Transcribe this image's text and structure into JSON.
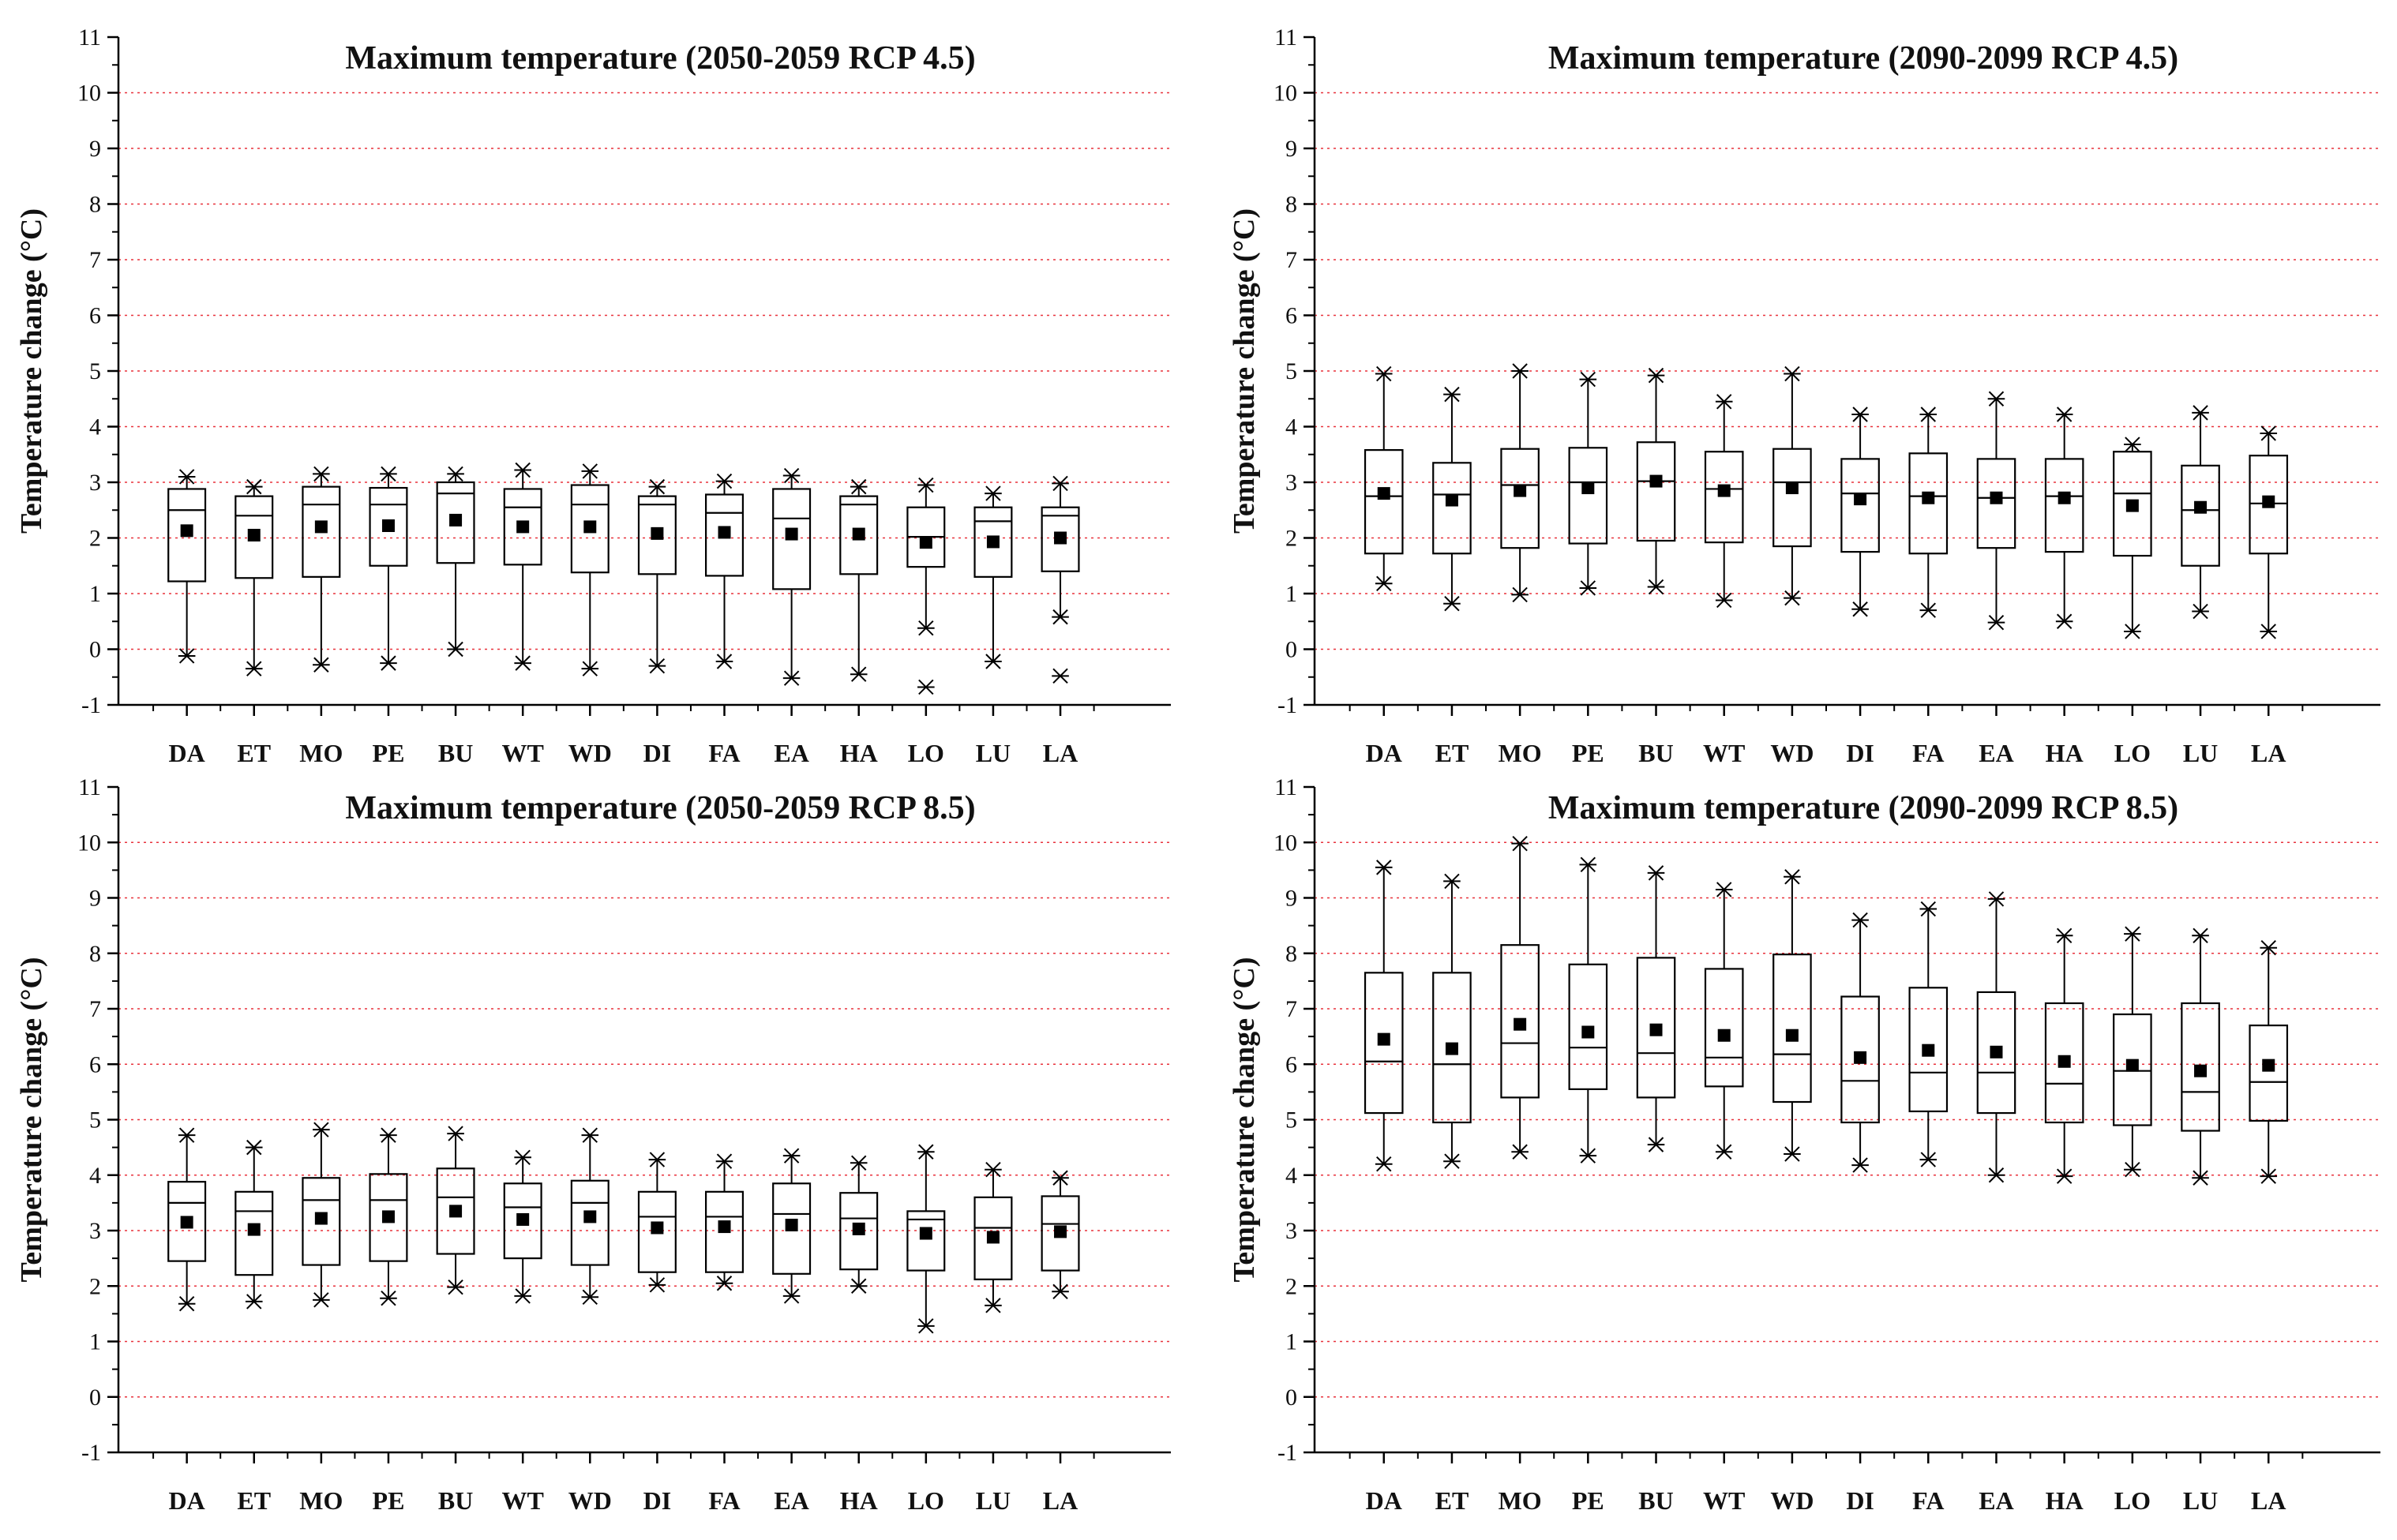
{
  "chart_data": [
    {
      "type": "box",
      "title": "Maximum temperature (2050-2059 RCP 4.5)",
      "ylabel": "Temperature change (°C)",
      "xlabel": "",
      "ylim": [
        -1,
        11
      ],
      "yticks": [
        "-1",
        "0",
        "1",
        "2",
        "3",
        "4",
        "5",
        "6",
        "7",
        "8",
        "9",
        "10",
        "11"
      ],
      "grid": "dotted-red",
      "legend": "none",
      "categories": [
        "DA",
        "ET",
        "MO",
        "PE",
        "BU",
        "WT",
        "WD",
        "DI",
        "FA",
        "EA",
        "HA",
        "LO",
        "LU",
        "LA"
      ],
      "boxes": [
        {
          "min": -0.12,
          "q1": 1.22,
          "median": 2.5,
          "q3": 2.88,
          "max": 3.1,
          "mean": 2.13
        },
        {
          "min": -0.35,
          "q1": 1.28,
          "median": 2.4,
          "q3": 2.75,
          "max": 2.92,
          "mean": 2.05
        },
        {
          "min": -0.28,
          "q1": 1.3,
          "median": 2.6,
          "q3": 2.92,
          "max": 3.15,
          "mean": 2.2
        },
        {
          "min": -0.25,
          "q1": 1.5,
          "median": 2.6,
          "q3": 2.9,
          "max": 3.15,
          "mean": 2.22
        },
        {
          "min": 0.0,
          "q1": 1.55,
          "median": 2.8,
          "q3": 3.0,
          "max": 3.15,
          "mean": 2.32
        },
        {
          "min": -0.25,
          "q1": 1.52,
          "median": 2.55,
          "q3": 2.88,
          "max": 3.22,
          "mean": 2.2
        },
        {
          "min": -0.35,
          "q1": 1.38,
          "median": 2.6,
          "q3": 2.95,
          "max": 3.2,
          "mean": 2.2
        },
        {
          "min": -0.3,
          "q1": 1.35,
          "median": 2.6,
          "q3": 2.75,
          "max": 2.92,
          "mean": 2.08
        },
        {
          "min": -0.22,
          "q1": 1.32,
          "median": 2.45,
          "q3": 2.78,
          "max": 3.02,
          "mean": 2.1
        },
        {
          "min": -0.52,
          "q1": 1.08,
          "median": 2.35,
          "q3": 2.88,
          "max": 3.12,
          "mean": 2.07
        },
        {
          "min": -0.45,
          "q1": 1.35,
          "median": 2.6,
          "q3": 2.75,
          "max": 2.92,
          "mean": 2.07
        },
        {
          "min": 0.38,
          "q1": 1.48,
          "median": 2.02,
          "q3": 2.55,
          "max": 2.95,
          "mean": 1.92,
          "outliers": [
            -0.68
          ]
        },
        {
          "min": -0.22,
          "q1": 1.3,
          "median": 2.3,
          "q3": 2.55,
          "max": 2.8,
          "mean": 1.93
        },
        {
          "min": 0.58,
          "q1": 1.4,
          "median": 2.4,
          "q3": 2.55,
          "max": 2.98,
          "mean": 2.0,
          "outliers": [
            -0.48
          ]
        }
      ]
    },
    {
      "type": "box",
      "title": "Maximum temperature (2090-2099 RCP 4.5)",
      "ylabel": "Temperature change (°C)",
      "xlabel": "",
      "ylim": [
        -1,
        11
      ],
      "yticks": [
        "-1",
        "0",
        "1",
        "2",
        "3",
        "4",
        "5",
        "6",
        "7",
        "8",
        "9",
        "10",
        "11"
      ],
      "grid": "dotted-red",
      "legend": "none",
      "categories": [
        "DA",
        "ET",
        "MO",
        "PE",
        "BU",
        "WT",
        "WD",
        "DI",
        "FA",
        "EA",
        "HA",
        "LO",
        "LU",
        "LA"
      ],
      "boxes": [
        {
          "min": 1.18,
          "q1": 1.72,
          "median": 2.75,
          "q3": 3.58,
          "max": 4.95,
          "mean": 2.8
        },
        {
          "min": 0.82,
          "q1": 1.72,
          "median": 2.78,
          "q3": 3.35,
          "max": 4.58,
          "mean": 2.68
        },
        {
          "min": 0.98,
          "q1": 1.82,
          "median": 2.95,
          "q3": 3.6,
          "max": 5.0,
          "mean": 2.85
        },
        {
          "min": 1.1,
          "q1": 1.9,
          "median": 3.0,
          "q3": 3.62,
          "max": 4.85,
          "mean": 2.9
        },
        {
          "min": 1.12,
          "q1": 1.95,
          "median": 3.02,
          "q3": 3.72,
          "max": 4.92,
          "mean": 3.02
        },
        {
          "min": 0.88,
          "q1": 1.92,
          "median": 2.88,
          "q3": 3.55,
          "max": 4.45,
          "mean": 2.85
        },
        {
          "min": 0.92,
          "q1": 1.85,
          "median": 3.0,
          "q3": 3.6,
          "max": 4.95,
          "mean": 2.9
        },
        {
          "min": 0.72,
          "q1": 1.75,
          "median": 2.8,
          "q3": 3.42,
          "max": 4.22,
          "mean": 2.7
        },
        {
          "min": 0.7,
          "q1": 1.72,
          "median": 2.75,
          "q3": 3.52,
          "max": 4.22,
          "mean": 2.72
        },
        {
          "min": 0.48,
          "q1": 1.82,
          "median": 2.72,
          "q3": 3.42,
          "max": 4.5,
          "mean": 2.72
        },
        {
          "min": 0.5,
          "q1": 1.75,
          "median": 2.75,
          "q3": 3.42,
          "max": 4.22,
          "mean": 2.72
        },
        {
          "min": 0.32,
          "q1": 1.68,
          "median": 2.8,
          "q3": 3.55,
          "max": 3.68,
          "mean": 2.58
        },
        {
          "min": 0.68,
          "q1": 1.5,
          "median": 2.5,
          "q3": 3.3,
          "max": 4.25,
          "mean": 2.55
        },
        {
          "min": 0.32,
          "q1": 1.72,
          "median": 2.62,
          "q3": 3.48,
          "max": 3.88,
          "mean": 2.65
        }
      ]
    },
    {
      "type": "box",
      "title": "Maximum temperature (2050-2059 RCP 8.5)",
      "ylabel": "Temperature change (°C)",
      "xlabel": "",
      "ylim": [
        -1,
        11
      ],
      "yticks": [
        "-1",
        "0",
        "1",
        "2",
        "3",
        "4",
        "5",
        "6",
        "7",
        "8",
        "9",
        "10",
        "11"
      ],
      "grid": "dotted-red",
      "legend": "none",
      "categories": [
        "DA",
        "ET",
        "MO",
        "PE",
        "BU",
        "WT",
        "WD",
        "DI",
        "FA",
        "EA",
        "HA",
        "LO",
        "LU",
        "LA"
      ],
      "boxes": [
        {
          "min": 1.68,
          "q1": 2.45,
          "median": 3.5,
          "q3": 3.88,
          "max": 4.72,
          "mean": 3.15
        },
        {
          "min": 1.72,
          "q1": 2.2,
          "median": 3.35,
          "q3": 3.7,
          "max": 4.5,
          "mean": 3.02
        },
        {
          "min": 1.75,
          "q1": 2.38,
          "median": 3.55,
          "q3": 3.95,
          "max": 4.82,
          "mean": 3.22
        },
        {
          "min": 1.78,
          "q1": 2.45,
          "median": 3.55,
          "q3": 4.02,
          "max": 4.72,
          "mean": 3.25
        },
        {
          "min": 1.98,
          "q1": 2.58,
          "median": 3.6,
          "q3": 4.12,
          "max": 4.75,
          "mean": 3.35
        },
        {
          "min": 1.82,
          "q1": 2.5,
          "median": 3.42,
          "q3": 3.85,
          "max": 4.32,
          "mean": 3.2
        },
        {
          "min": 1.8,
          "q1": 2.38,
          "median": 3.5,
          "q3": 3.9,
          "max": 4.72,
          "mean": 3.25
        },
        {
          "min": 2.02,
          "q1": 2.25,
          "median": 3.25,
          "q3": 3.7,
          "max": 4.28,
          "mean": 3.05
        },
        {
          "min": 2.05,
          "q1": 2.25,
          "median": 3.25,
          "q3": 3.7,
          "max": 4.25,
          "mean": 3.07
        },
        {
          "min": 1.82,
          "q1": 2.22,
          "median": 3.3,
          "q3": 3.85,
          "max": 4.35,
          "mean": 3.1
        },
        {
          "min": 2.0,
          "q1": 2.3,
          "median": 3.22,
          "q3": 3.68,
          "max": 4.22,
          "mean": 3.03
        },
        {
          "min": 1.28,
          "q1": 2.28,
          "median": 3.2,
          "q3": 3.35,
          "max": 4.42,
          "mean": 2.95
        },
        {
          "min": 1.65,
          "q1": 2.12,
          "median": 3.05,
          "q3": 3.6,
          "max": 4.1,
          "mean": 2.88
        },
        {
          "min": 1.9,
          "q1": 2.28,
          "median": 3.12,
          "q3": 3.62,
          "max": 3.95,
          "mean": 2.98
        }
      ]
    },
    {
      "type": "box",
      "title": "Maximum temperature (2090-2099 RCP 8.5)",
      "ylabel": "Temperature change (°C)",
      "xlabel": "",
      "ylim": [
        -1,
        11
      ],
      "yticks": [
        "-1",
        "0",
        "1",
        "2",
        "3",
        "4",
        "5",
        "6",
        "7",
        "8",
        "9",
        "10",
        "11"
      ],
      "grid": "dotted-red",
      "legend": "none",
      "categories": [
        "DA",
        "ET",
        "MO",
        "PE",
        "BU",
        "WT",
        "WD",
        "DI",
        "FA",
        "EA",
        "HA",
        "LO",
        "LU",
        "LA"
      ],
      "boxes": [
        {
          "min": 4.2,
          "q1": 5.12,
          "median": 6.05,
          "q3": 7.65,
          "max": 9.55,
          "mean": 6.45
        },
        {
          "min": 4.25,
          "q1": 4.95,
          "median": 6.0,
          "q3": 7.65,
          "max": 9.3,
          "mean": 6.28
        },
        {
          "min": 4.42,
          "q1": 5.4,
          "median": 6.38,
          "q3": 8.15,
          "max": 9.98,
          "mean": 6.72
        },
        {
          "min": 4.35,
          "q1": 5.55,
          "median": 6.3,
          "q3": 7.8,
          "max": 9.6,
          "mean": 6.58
        },
        {
          "min": 4.55,
          "q1": 5.4,
          "median": 6.2,
          "q3": 7.92,
          "max": 9.45,
          "mean": 6.62
        },
        {
          "min": 4.42,
          "q1": 5.6,
          "median": 6.12,
          "q3": 7.72,
          "max": 9.15,
          "mean": 6.52
        },
        {
          "min": 4.38,
          "q1": 5.32,
          "median": 6.18,
          "q3": 7.98,
          "max": 9.38,
          "mean": 6.52
        },
        {
          "min": 4.18,
          "q1": 4.95,
          "median": 5.7,
          "q3": 7.22,
          "max": 8.6,
          "mean": 6.12
        },
        {
          "min": 4.28,
          "q1": 5.15,
          "median": 5.85,
          "q3": 7.38,
          "max": 8.8,
          "mean": 6.25
        },
        {
          "min": 4.0,
          "q1": 5.12,
          "median": 5.85,
          "q3": 7.3,
          "max": 8.98,
          "mean": 6.22
        },
        {
          "min": 3.98,
          "q1": 4.95,
          "median": 5.65,
          "q3": 7.1,
          "max": 8.32,
          "mean": 6.05
        },
        {
          "min": 4.1,
          "q1": 4.9,
          "median": 5.88,
          "q3": 6.9,
          "max": 8.35,
          "mean": 5.98
        },
        {
          "min": 3.95,
          "q1": 4.8,
          "median": 5.5,
          "q3": 7.1,
          "max": 8.32,
          "mean": 5.88
        },
        {
          "min": 3.98,
          "q1": 4.98,
          "median": 5.68,
          "q3": 6.7,
          "max": 8.1,
          "mean": 5.98
        }
      ]
    }
  ]
}
